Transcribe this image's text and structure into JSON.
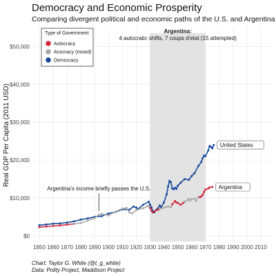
{
  "chart_data": {
    "type": "line",
    "title": "Democracy and Economic Prosperity",
    "subtitle": "Comparing divergent political and economic paths of the U.S. and Argentina",
    "ylabel": "Real GDP Per Capita (2011 USD)",
    "xlabel": "",
    "xlim": [
      1845,
      2018
    ],
    "ylim": [
      -1500,
      55000
    ],
    "x_ticks": [
      1850,
      1860,
      1870,
      1880,
      1890,
      1900,
      1910,
      1920,
      1930,
      1940,
      1950,
      1960,
      1970,
      1980,
      1990,
      2000,
      2010
    ],
    "y_ticks": [
      {
        "value": 0,
        "label": "$0"
      },
      {
        "value": 10000,
        "label": "$10,000"
      },
      {
        "value": 20000,
        "label": "$20,000"
      },
      {
        "value": 30000,
        "label": "$30,000"
      },
      {
        "value": 40000,
        "label": "$40,000"
      },
      {
        "value": 50000,
        "label": "$50,000"
      }
    ],
    "grid": true,
    "legend": {
      "title": "Type of Government",
      "position": "top-left",
      "entries": [
        {
          "label": "Autocracy",
          "color": "#d12a3d"
        },
        {
          "label": "Anocracy (mixed)",
          "color": "#a9a9a9"
        },
        {
          "label": "Democracy",
          "color": "#15489a"
        }
      ]
    },
    "shaded_region": {
      "x": [
        1930,
        1970
      ],
      "color": "#e3e3e3",
      "label_line1": "Argentina:",
      "label_line2": "4 autocratic shifts, 7 coups d'etat (15 attempted)"
    },
    "annotation": {
      "text": "Argentina's income briefly passes the U.S.",
      "x": 1893,
      "y": 5800
    },
    "series": [
      {
        "name": "United States",
        "label": "United States",
        "segments": [
          {
            "regime": "Democracy",
            "points": [
              [
                1850,
                2800
              ],
              [
                1855,
                3000
              ],
              [
                1860,
                3200
              ],
              [
                1865,
                3300
              ],
              [
                1870,
                3500
              ],
              [
                1875,
                3800
              ],
              [
                1880,
                4300
              ],
              [
                1885,
                4600
              ],
              [
                1890,
                5000
              ],
              [
                1895,
                5200
              ],
              [
                1900,
                5900
              ],
              [
                1905,
                6300
              ],
              [
                1910,
                7000
              ],
              [
                1915,
                6900
              ],
              [
                1918,
                7700
              ],
              [
                1920,
                7500
              ],
              [
                1921,
                7000
              ],
              [
                1925,
                8200
              ],
              [
                1929,
                9000
              ],
              [
                1930,
                8200
              ],
              [
                1931,
                7500
              ],
              [
                1932,
                6500
              ],
              [
                1933,
                6200
              ],
              [
                1935,
                7000
              ],
              [
                1937,
                8000
              ],
              [
                1938,
                7600
              ],
              [
                1940,
                8800
              ],
              [
                1942,
                11000
              ],
              [
                1943,
                13000
              ],
              [
                1944,
                14500
              ],
              [
                1945,
                14200
              ],
              [
                1946,
                12500
              ],
              [
                1947,
                12300
              ],
              [
                1948,
                12700
              ],
              [
                1949,
                12400
              ],
              [
                1950,
                13200
              ],
              [
                1952,
                14000
              ],
              [
                1955,
                15000
              ],
              [
                1958,
                14800
              ],
              [
                1960,
                15800
              ],
              [
                1962,
                16500
              ],
              [
                1965,
                18500
              ],
              [
                1967,
                19500
              ],
              [
                1968,
                20500
              ],
              [
                1969,
                21200
              ],
              [
                1970,
                21000
              ],
              [
                1972,
                22500
              ],
              [
                1973,
                23700
              ],
              [
                1974,
                23500
              ],
              [
                1975,
                23100
              ],
              [
                1976,
                24000
              ]
            ]
          }
        ]
      },
      {
        "name": "Argentina",
        "label": "Argentina",
        "segments": [
          {
            "regime": "Autocracy",
            "points": [
              [
                1850,
                2300
              ],
              [
                1855,
                2450
              ],
              [
                1860,
                2600
              ],
              [
                1865,
                2750
              ],
              [
                1870,
                2950
              ],
              [
                1875,
                3150
              ]
            ]
          },
          {
            "regime": "Anocracy (mixed)",
            "points": [
              [
                1875,
                3150
              ],
              [
                1880,
                3400
              ],
              [
                1885,
                4000
              ],
              [
                1890,
                4700
              ],
              [
                1893,
                5600
              ],
              [
                1895,
                5800
              ],
              [
                1900,
                5400
              ],
              [
                1905,
                6400
              ],
              [
                1910,
                7200
              ],
              [
                1913,
                7400
              ],
              [
                1915,
                6200
              ],
              [
                1917,
                5900
              ],
              [
                1920,
                6800
              ],
              [
                1925,
                7300
              ],
              [
                1928,
                7800
              ],
              [
                1929,
                7900
              ],
              [
                1930,
                7400
              ]
            ]
          },
          {
            "regime": "Autocracy",
            "points": [
              [
                1930,
                7400
              ],
              [
                1931,
                6600
              ],
              [
                1932,
                6200
              ],
              [
                1934,
                6700
              ],
              [
                1936,
                6900
              ],
              [
                1937,
                7200
              ]
            ]
          },
          {
            "regime": "Anocracy (mixed)",
            "points": [
              [
                1937,
                7200
              ],
              [
                1939,
                7300
              ],
              [
                1941,
                7600
              ],
              [
                1943,
                7700
              ],
              [
                1945,
                7600
              ],
              [
                1946,
                8300
              ]
            ]
          },
          {
            "regime": "Autocracy",
            "points": [
              [
                1946,
                8300
              ],
              [
                1948,
                9200
              ],
              [
                1949,
                8800
              ],
              [
                1950,
                8700
              ],
              [
                1952,
                8200
              ],
              [
                1954,
                8700
              ],
              [
                1955,
                9000
              ]
            ]
          },
          {
            "regime": "Anocracy (mixed)",
            "points": [
              [
                1955,
                9000
              ],
              [
                1957,
                9400
              ],
              [
                1958,
                9800
              ],
              [
                1959,
                9300
              ],
              [
                1960,
                9700
              ],
              [
                1962,
                9800
              ],
              [
                1963,
                9200
              ],
              [
                1965,
                10300
              ],
              [
                1966,
                10200
              ]
            ]
          },
          {
            "regime": "Autocracy",
            "points": [
              [
                1966,
                10200
              ],
              [
                1967,
                10400
              ],
              [
                1968,
                10800
              ],
              [
                1969,
                11600
              ],
              [
                1970,
                12200
              ],
              [
                1972,
                12500
              ],
              [
                1973,
                12800
              ],
              [
                1975,
                12900
              ]
            ]
          }
        ]
      }
    ]
  },
  "caption": {
    "line1": "Chart: Taylor G. White (@t_g_white)",
    "line2": "Data: Polity Project, Maddison Project"
  }
}
